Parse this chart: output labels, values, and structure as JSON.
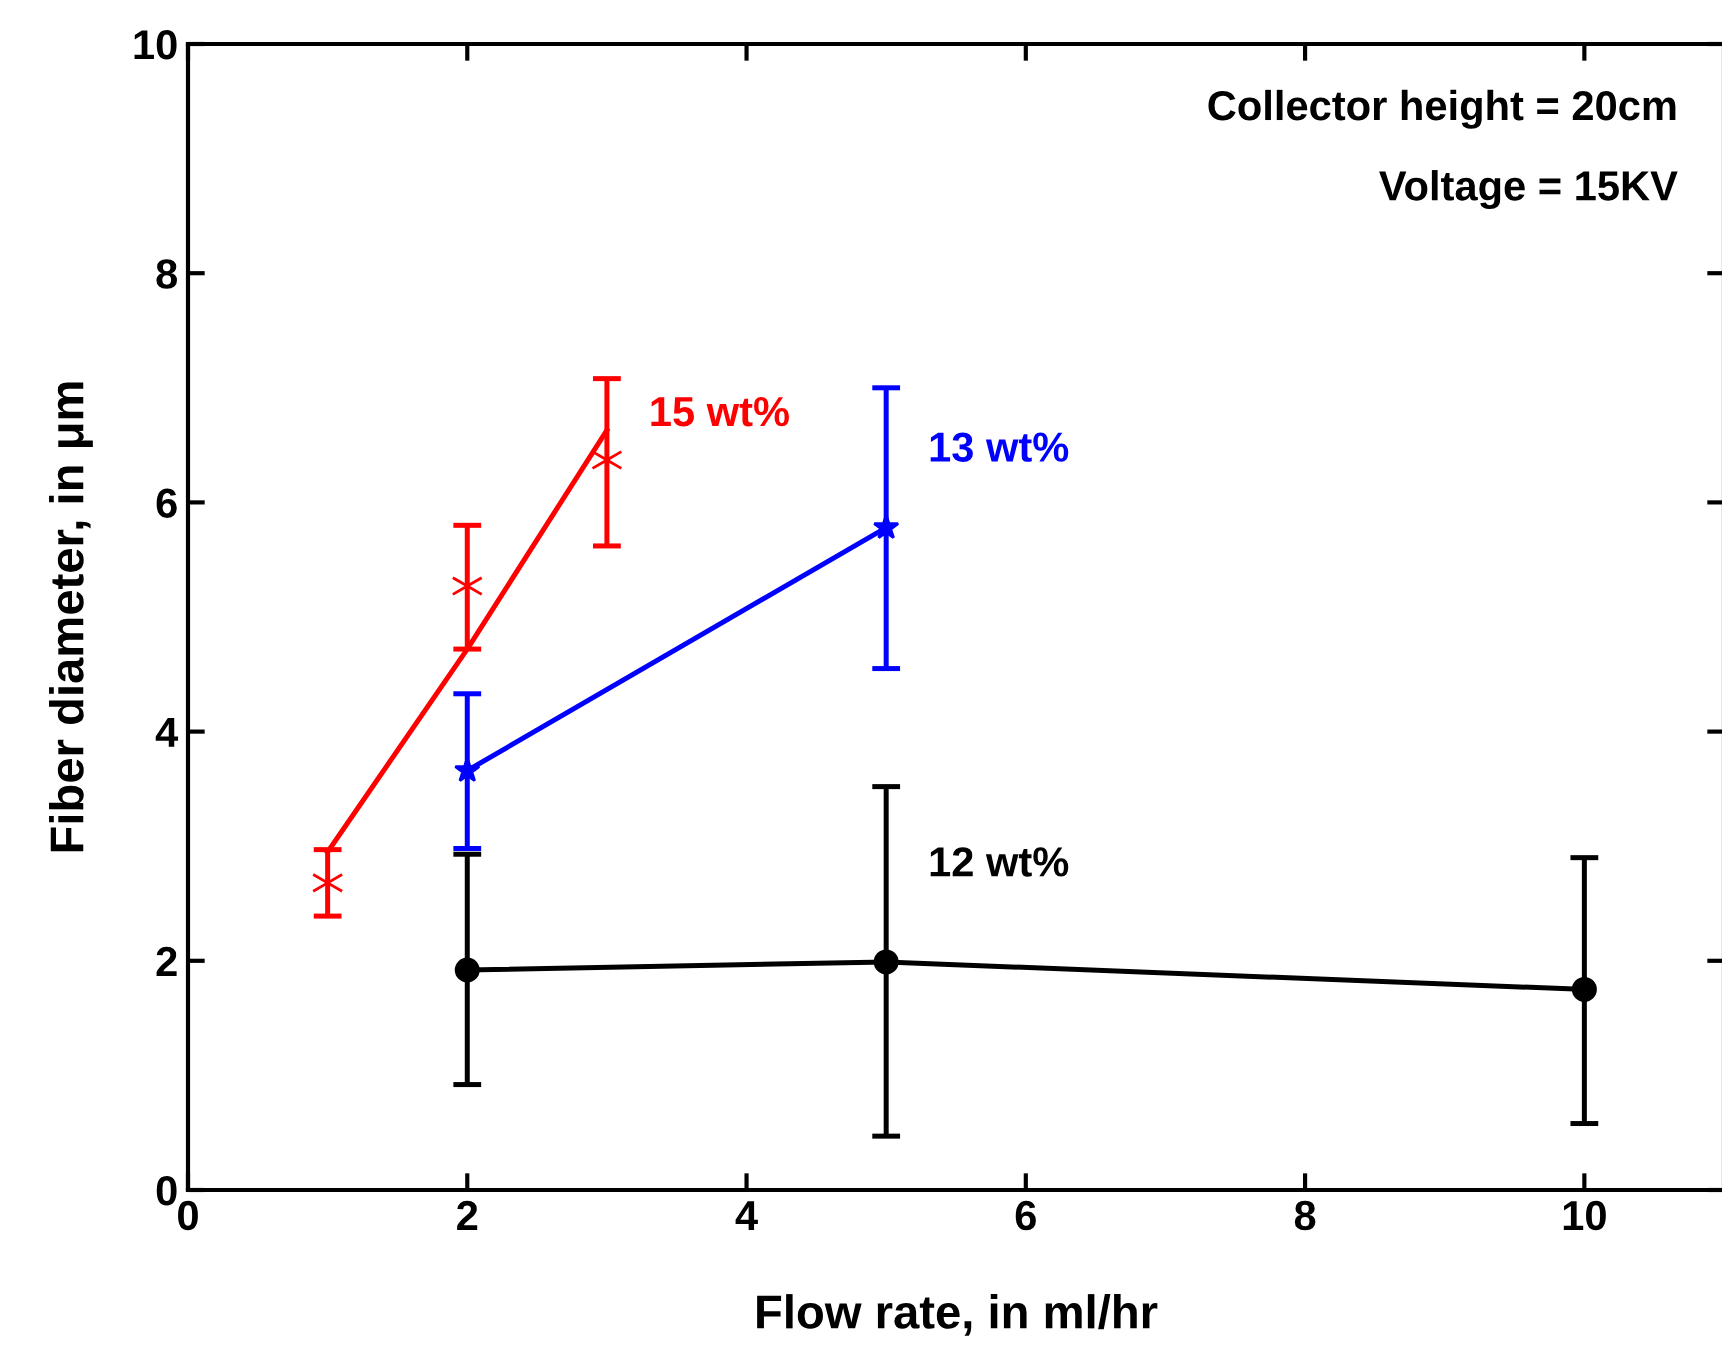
{
  "chart_data": {
    "type": "scatter",
    "xlabel": "Flow rate, in ml/hr",
    "ylabel": "Fiber diameter, in μm",
    "xlim": [
      0,
      11
    ],
    "xticks": [
      0,
      2,
      4,
      6,
      8,
      10
    ],
    "ylim": [
      0,
      10
    ],
    "yticks": [
      0,
      2,
      4,
      6,
      8,
      10
    ],
    "grid": false,
    "legend": false,
    "series": [
      {
        "name": "15 wt%",
        "color": "#ff0000",
        "marker": "cross",
        "x": [
          1,
          2,
          3
        ],
        "values": [
          2.68,
          5.27,
          6.37
        ],
        "errors": [
          [
            2.39,
            2.97
          ],
          [
            4.72,
            5.8
          ],
          [
            5.62,
            7.08
          ]
        ]
      },
      {
        "name": "13 wt%",
        "type": "line",
        "color": "#0000ff",
        "marker": "star",
        "x": [
          2,
          5
        ],
        "values": [
          3.66,
          5.78
        ],
        "errors": [
          [
            2.98,
            4.33
          ],
          [
            4.55,
            7.0
          ]
        ]
      },
      {
        "name": "12 wt%",
        "type": "line",
        "color": "#000000",
        "marker": "circle",
        "x": [
          2,
          5,
          10
        ],
        "values": [
          1.92,
          1.99,
          1.75
        ],
        "errors": [
          [
            0.92,
            2.93
          ],
          [
            0.47,
            3.52
          ],
          [
            0.58,
            2.9
          ]
        ]
      },
      {
        "type": "line",
        "color": "#ff0000",
        "marker": "none",
        "x": [
          1,
          2,
          3
        ],
        "values": [
          2.95,
          4.72,
          6.63
        ]
      }
    ],
    "annotations": [
      "Collector height = 20cm",
      "Voltage = 15KV"
    ]
  }
}
